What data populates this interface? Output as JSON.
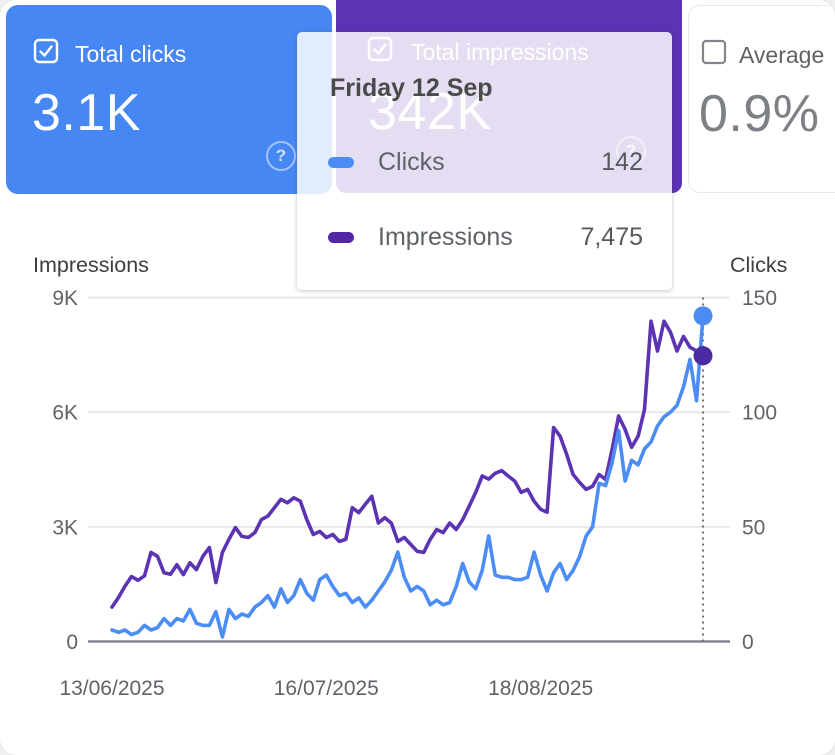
{
  "cards": {
    "clicks": {
      "label": "Total clicks",
      "value": "3.1K",
      "checked": true,
      "bg": "#4787f3"
    },
    "impressions": {
      "label": "Total impressions",
      "value": "342K",
      "checked": true,
      "bg": "#5c33b4"
    },
    "ctr": {
      "label": "Average",
      "value": "0.9%",
      "checked": false,
      "bg": "#ffffff"
    },
    "help_glyph": "?"
  },
  "tooltip": {
    "date": "Friday 12 Sep",
    "rows": [
      {
        "label": "Clicks",
        "value": "142",
        "swatch": "#4c8df5"
      },
      {
        "label": "Impressions",
        "value": "7,475",
        "swatch": "#5227a5"
      }
    ]
  },
  "chart_data": {
    "type": "line",
    "title": "",
    "left_axis": {
      "title": "Impressions",
      "tick_labels": [
        "9K",
        "6K",
        "3K",
        "0"
      ],
      "tick_values": [
        9000,
        6000,
        3000,
        0
      ],
      "max": 9000
    },
    "right_axis": {
      "title": "Clicks",
      "tick_labels": [
        "150",
        "100",
        "50",
        "0"
      ],
      "tick_values": [
        150,
        100,
        50,
        0
      ],
      "max": 150
    },
    "x_ticks": [
      "13/06/2025",
      "16/07/2025",
      "18/08/2025"
    ],
    "x_tick_days": [
      0,
      33,
      66
    ],
    "days_total": 92,
    "grid": true,
    "hover_index": 91,
    "hover_date": "Friday 12 Sep",
    "series": [
      {
        "name": "Impressions",
        "axis": "left",
        "color": "#5c33b2",
        "dot_color": "#4b2aa3",
        "values": [
          900,
          1150,
          1450,
          1700,
          1600,
          1720,
          2330,
          2230,
          1800,
          1760,
          2010,
          1750,
          2060,
          1880,
          2230,
          2460,
          1540,
          2330,
          2670,
          2980,
          2750,
          2720,
          2850,
          3190,
          3280,
          3500,
          3720,
          3630,
          3760,
          3670,
          3190,
          2800,
          2880,
          2720,
          2800,
          2620,
          2670,
          3500,
          3370,
          3590,
          3800,
          3100,
          3240,
          3100,
          2620,
          2720,
          2540,
          2360,
          2330,
          2670,
          2930,
          2850,
          3100,
          2930,
          3190,
          3540,
          3900,
          4330,
          4250,
          4400,
          4470,
          4330,
          4200,
          3900,
          3980,
          3670,
          3460,
          3380,
          5600,
          5370,
          4900,
          4370,
          4160,
          3980,
          4060,
          4370,
          4240,
          5020,
          5900,
          5550,
          5080,
          5370,
          6070,
          8380,
          7600,
          8380,
          8090,
          7600,
          7980,
          7700,
          7600,
          7475
        ]
      },
      {
        "name": "Clicks",
        "axis": "right",
        "color": "#4c8df5",
        "dot_color": "#4a8cf2",
        "values": [
          5,
          4,
          5,
          3,
          4,
          7,
          5,
          6,
          10,
          7,
          10,
          9,
          14,
          8,
          7,
          7,
          13,
          2,
          14,
          10,
          12,
          11,
          15,
          17,
          20,
          15,
          23,
          17,
          20,
          27,
          21,
          18,
          27,
          29,
          24,
          20,
          21,
          17,
          19,
          15,
          18,
          22,
          26,
          31,
          39,
          28,
          22,
          24,
          22,
          16,
          18,
          16,
          17,
          24,
          34,
          26,
          23,
          31,
          46,
          29,
          28,
          28,
          27,
          27,
          28,
          39,
          29,
          22,
          30,
          34,
          27,
          31,
          37,
          46,
          50,
          69,
          68,
          78,
          92,
          70,
          79,
          77,
          84,
          87,
          94,
          98,
          100,
          103,
          111,
          123,
          105,
          142
        ]
      }
    ],
    "colors": {
      "grid": "#e8e8e8",
      "baseline": "#80868b",
      "tick_text": "#5f6368",
      "axis_title": "#3c4043",
      "hover_line": "#6b6f73"
    }
  }
}
